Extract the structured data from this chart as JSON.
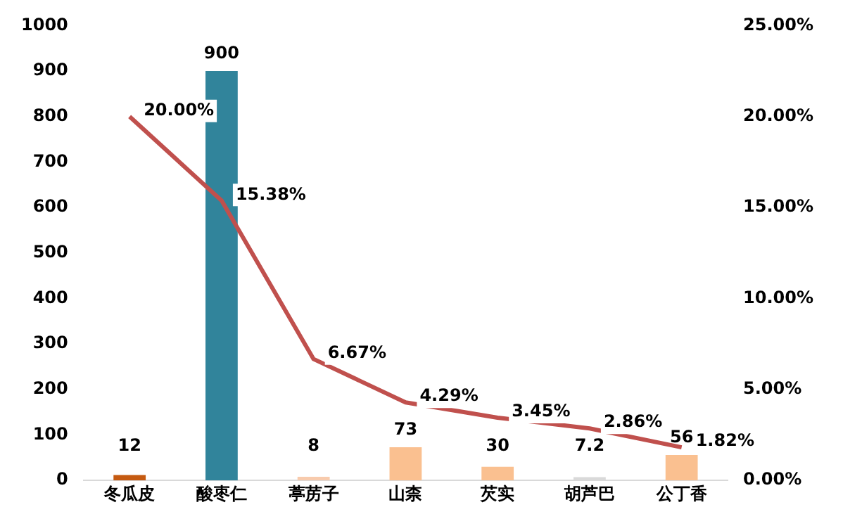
{
  "chart_data": {
    "type": "bar",
    "categories": [
      "冬瓜皮",
      "酸枣仁",
      "葶苈子",
      "山柰",
      "芡实",
      "胡芦巴",
      "公丁香"
    ],
    "series": [
      {
        "colors": [
          "#c55a11",
          "#31849b",
          "#f8cbad",
          "#fac090",
          "#fac090",
          "#d9d9d9",
          "#fac090"
        ],
        "values": [
          12,
          900,
          8,
          73,
          30,
          7.2,
          56
        ],
        "value_labels": [
          "12",
          "900",
          "8",
          "73",
          "30",
          "7.2",
          "56"
        ]
      },
      {
        "type": "line",
        "axis": "y2",
        "color": "#c0504d",
        "values": [
          20.0,
          15.38,
          6.67,
          4.29,
          3.45,
          2.86,
          1.82
        ],
        "value_labels": [
          "20.00%",
          "15.38%",
          "6.67%",
          "4.29%",
          "3.45%",
          "2.86%",
          "1.82%"
        ]
      }
    ],
    "ylim": [
      0,
      1000
    ],
    "yticks": [
      0,
      100,
      200,
      300,
      400,
      500,
      600,
      700,
      800,
      900,
      1000
    ],
    "y2lim": [
      0,
      25
    ],
    "y2ticks": [
      {
        "value": 0,
        "label": "0.00%"
      },
      {
        "value": 5,
        "label": "5.00%"
      },
      {
        "value": 10,
        "label": "10.00%"
      },
      {
        "value": 15,
        "label": "15.00%"
      },
      {
        "value": 20,
        "label": "20.00%"
      },
      {
        "value": 25,
        "label": "25.00%"
      }
    ],
    "grid": false,
    "legend": false,
    "marker": "none"
  }
}
